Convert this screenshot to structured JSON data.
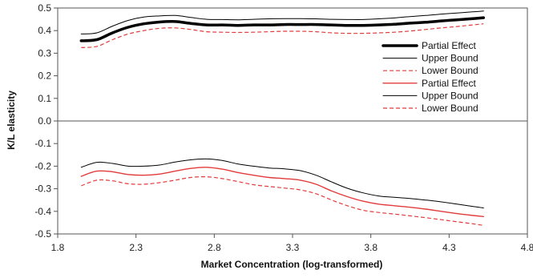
{
  "chart_data": {
    "type": "line",
    "xlabel": "Market Concentration (log-transformed)",
    "ylabel": "K/L elasticity",
    "xlim": [
      1.8,
      4.8
    ],
    "ylim": [
      -0.5,
      0.5
    ],
    "x_ticks": [
      "1.8",
      "2.3",
      "2.8",
      "3.3",
      "3.8",
      "4.3",
      "4.8"
    ],
    "y_ticks": [
      "0.5",
      "0.4",
      "0.3",
      "0.2",
      "0.1",
      "0.0",
      "-0.1",
      "-0.2",
      "-0.3",
      "-0.4",
      "-0.5"
    ],
    "grid": false,
    "legend_position": "right",
    "series": [
      {
        "name": "Partial Effect",
        "color": "#000000",
        "style": "solid-thick",
        "x": [
          1.95,
          2.05,
          2.15,
          2.25,
          2.35,
          2.45,
          2.55,
          2.65,
          2.75,
          2.85,
          2.95,
          3.05,
          3.15,
          3.25,
          3.35,
          3.45,
          3.55,
          3.65,
          3.75,
          3.85,
          3.95,
          4.05,
          4.15,
          4.25,
          4.35,
          4.45,
          4.52
        ],
        "values": [
          0.355,
          0.36,
          0.39,
          0.415,
          0.43,
          0.438,
          0.44,
          0.432,
          0.425,
          0.425,
          0.423,
          0.425,
          0.425,
          0.427,
          0.427,
          0.427,
          0.425,
          0.423,
          0.423,
          0.425,
          0.428,
          0.433,
          0.437,
          0.443,
          0.448,
          0.453,
          0.457
        ]
      },
      {
        "name": "Upper Bound",
        "color": "#000000",
        "style": "solid-thin",
        "x": [
          1.95,
          2.05,
          2.15,
          2.25,
          2.35,
          2.45,
          2.55,
          2.65,
          2.75,
          2.85,
          2.95,
          3.05,
          3.15,
          3.25,
          3.35,
          3.45,
          3.55,
          3.65,
          3.75,
          3.85,
          3.95,
          4.05,
          4.15,
          4.25,
          4.35,
          4.45,
          4.52
        ],
        "values": [
          0.385,
          0.39,
          0.42,
          0.445,
          0.46,
          0.465,
          0.467,
          0.458,
          0.45,
          0.449,
          0.448,
          0.45,
          0.452,
          0.453,
          0.453,
          0.452,
          0.45,
          0.449,
          0.449,
          0.452,
          0.456,
          0.462,
          0.467,
          0.473,
          0.478,
          0.483,
          0.487
        ]
      },
      {
        "name": "Lower Bound",
        "color": "#e23b3b",
        "style": "dashed",
        "x": [
          1.95,
          2.05,
          2.15,
          2.25,
          2.35,
          2.45,
          2.55,
          2.65,
          2.75,
          2.85,
          2.95,
          3.05,
          3.15,
          3.25,
          3.35,
          3.45,
          3.55,
          3.65,
          3.75,
          3.85,
          3.95,
          4.05,
          4.15,
          4.25,
          4.35,
          4.45,
          4.52
        ],
        "values": [
          0.325,
          0.33,
          0.36,
          0.385,
          0.4,
          0.41,
          0.412,
          0.405,
          0.395,
          0.393,
          0.392,
          0.393,
          0.395,
          0.397,
          0.397,
          0.395,
          0.39,
          0.388,
          0.388,
          0.39,
          0.393,
          0.398,
          0.405,
          0.412,
          0.418,
          0.425,
          0.43
        ]
      },
      {
        "name": "Partial Effect",
        "color": "#e23b3b",
        "style": "solid",
        "x": [
          1.95,
          2.05,
          2.15,
          2.25,
          2.35,
          2.45,
          2.55,
          2.65,
          2.75,
          2.85,
          2.95,
          3.05,
          3.15,
          3.25,
          3.35,
          3.45,
          3.55,
          3.65,
          3.75,
          3.85,
          3.95,
          4.05,
          4.15,
          4.25,
          4.35,
          4.45,
          4.52
        ],
        "values": [
          -0.245,
          -0.222,
          -0.225,
          -0.237,
          -0.24,
          -0.235,
          -0.222,
          -0.21,
          -0.205,
          -0.213,
          -0.228,
          -0.24,
          -0.25,
          -0.255,
          -0.262,
          -0.28,
          -0.31,
          -0.335,
          -0.355,
          -0.368,
          -0.375,
          -0.382,
          -0.39,
          -0.4,
          -0.41,
          -0.418,
          -0.423
        ]
      },
      {
        "name": "Upper Bound",
        "color": "#000000",
        "style": "solid-thin",
        "x": [
          1.95,
          2.05,
          2.15,
          2.25,
          2.35,
          2.45,
          2.55,
          2.65,
          2.75,
          2.85,
          2.95,
          3.05,
          3.15,
          3.25,
          3.35,
          3.45,
          3.55,
          3.65,
          3.75,
          3.85,
          3.95,
          4.05,
          4.15,
          4.25,
          4.35,
          4.45,
          4.52
        ],
        "values": [
          -0.205,
          -0.183,
          -0.188,
          -0.2,
          -0.2,
          -0.195,
          -0.182,
          -0.172,
          -0.168,
          -0.175,
          -0.19,
          -0.2,
          -0.208,
          -0.212,
          -0.22,
          -0.24,
          -0.27,
          -0.298,
          -0.318,
          -0.332,
          -0.338,
          -0.343,
          -0.35,
          -0.358,
          -0.368,
          -0.378,
          -0.385
        ]
      },
      {
        "name": "Lower Bound",
        "color": "#e23b3b",
        "style": "dashed",
        "x": [
          1.95,
          2.05,
          2.15,
          2.25,
          2.35,
          2.45,
          2.55,
          2.65,
          2.75,
          2.85,
          2.95,
          3.05,
          3.15,
          3.25,
          3.35,
          3.45,
          3.55,
          3.65,
          3.75,
          3.85,
          3.95,
          4.05,
          4.15,
          4.25,
          4.35,
          4.45,
          4.52
        ],
        "values": [
          -0.287,
          -0.262,
          -0.265,
          -0.278,
          -0.28,
          -0.273,
          -0.262,
          -0.25,
          -0.247,
          -0.255,
          -0.268,
          -0.282,
          -0.29,
          -0.297,
          -0.305,
          -0.322,
          -0.35,
          -0.375,
          -0.395,
          -0.405,
          -0.412,
          -0.42,
          -0.428,
          -0.437,
          -0.446,
          -0.455,
          -0.462
        ]
      }
    ]
  }
}
